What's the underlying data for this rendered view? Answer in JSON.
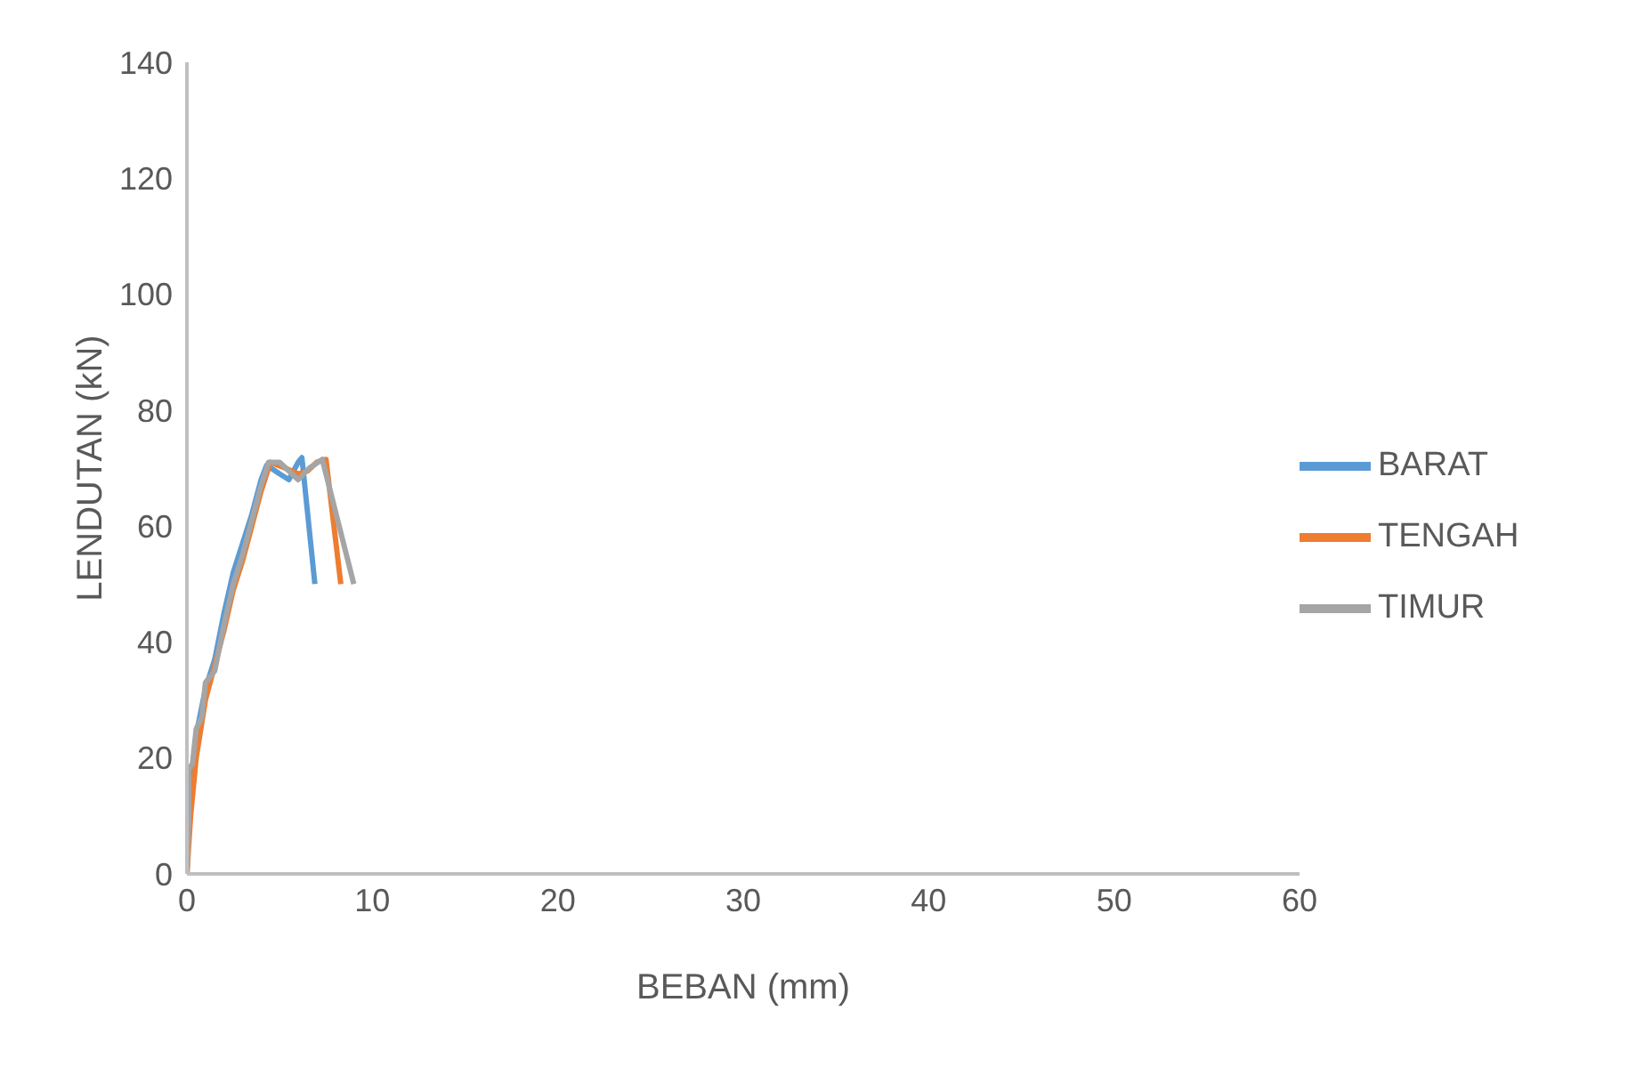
{
  "chart_data": {
    "type": "line",
    "xlabel": "BEBAN (mm)",
    "ylabel": "LENDUTAN (kN)",
    "xlim": [
      0,
      60
    ],
    "xticks": [
      0,
      10,
      20,
      30,
      40,
      50,
      60
    ],
    "ylim": [
      0,
      140
    ],
    "yticks": [
      0,
      20,
      40,
      60,
      80,
      100,
      120,
      140
    ],
    "legend": "right",
    "grid": false,
    "marker": "none",
    "line_style": "solid",
    "series": [
      {
        "name": "BARAT",
        "color": "#5b9bd5",
        "x": [
          0,
          0.1,
          0.5,
          1,
          1.5,
          2,
          2.5,
          3,
          3.5,
          4,
          4.3,
          5,
          5.5,
          6,
          6.2,
          6.9
        ],
        "values": [
          0,
          12,
          24,
          32,
          37,
          45,
          52,
          57,
          62,
          68,
          70.5,
          69,
          68,
          71,
          71.8,
          50
        ]
      },
      {
        "name": "TENGAH",
        "color": "#ed7d31",
        "x": [
          0,
          0.2,
          0.5,
          1,
          1.5,
          2,
          2.5,
          3,
          3.5,
          4,
          4.5,
          5.3,
          6,
          6.5,
          7,
          7.5,
          8.3
        ],
        "values": [
          0,
          10,
          20,
          30,
          36,
          42,
          49,
          54,
          60,
          66,
          71,
          70,
          69,
          69.5,
          71,
          71.5,
          50
        ]
      },
      {
        "name": "TIMUR",
        "color": "#a5a5a5",
        "x": [
          0,
          0.1,
          0.1,
          0.3,
          0.5,
          0.8,
          1,
          1.5,
          2,
          2.5,
          3,
          3.5,
          4,
          4.4,
          5,
          5.5,
          6,
          6.6,
          7.3,
          9
        ],
        "values": [
          0,
          10,
          18,
          19,
          25,
          27,
          33,
          35,
          43,
          50,
          55,
          61,
          67,
          71,
          71,
          69.5,
          68,
          70,
          71.5,
          50
        ]
      }
    ]
  }
}
